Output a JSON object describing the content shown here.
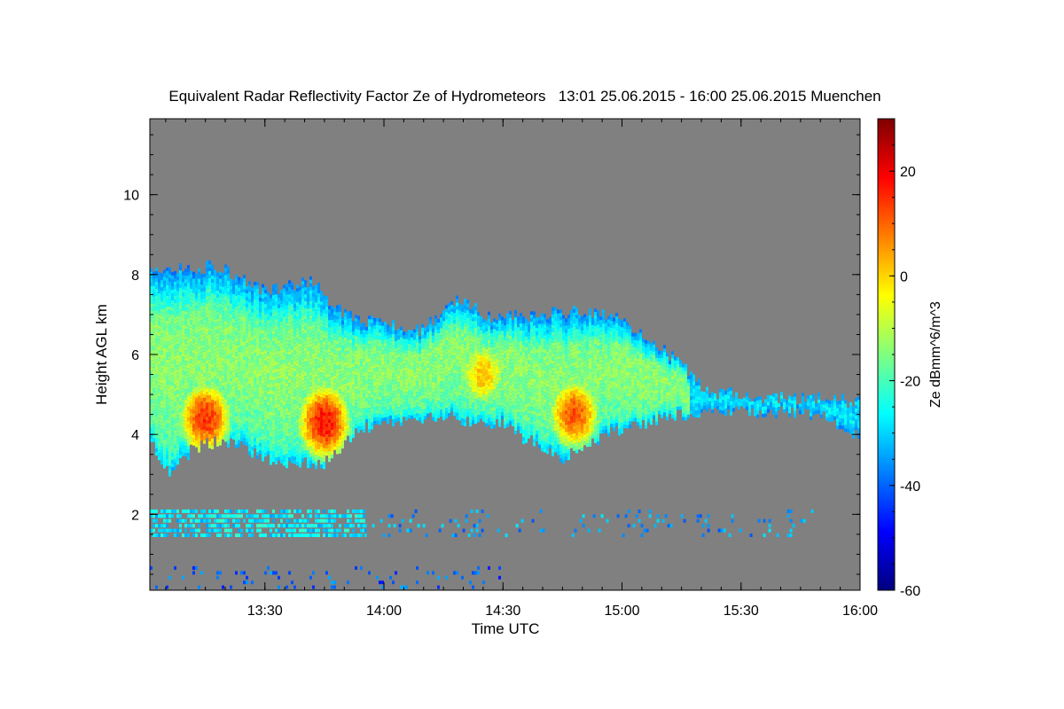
{
  "chart_data": {
    "type": "heatmap",
    "title": "Equivalent Radar Reflectivity Factor Ze of Hydrometeors   13:01 25.06.2015 - 16:00 25.06.2015 Muenchen",
    "xlabel": "Time UTC",
    "ylabel": "Height AGL km",
    "colorbar_label": "Ze dBmm^6/m^3",
    "x_range": [
      "13:01",
      "16:00"
    ],
    "x_ticks": [
      "13:30",
      "14:00",
      "14:30",
      "15:00",
      "15:30",
      "16:00"
    ],
    "y_range": [
      0.1,
      11.9
    ],
    "y_ticks": [
      "2",
      "4",
      "6",
      "8",
      "10"
    ],
    "colorbar_range": [
      -60,
      30
    ],
    "colorbar_ticks": [
      "20",
      "0",
      "-20",
      "-40",
      "-60"
    ],
    "colormap": "jet",
    "no_data_color": "#808080",
    "cloud_layer": {
      "base_km": [
        [
          13.02,
          3.9
        ],
        [
          13.1,
          3.1
        ],
        [
          13.2,
          3.7
        ],
        [
          13.35,
          3.9
        ],
        [
          13.55,
          3.3
        ],
        [
          13.75,
          3.3
        ],
        [
          13.9,
          4.2
        ],
        [
          14.1,
          4.4
        ],
        [
          14.25,
          4.5
        ],
        [
          14.5,
          4.3
        ],
        [
          14.75,
          3.4
        ],
        [
          14.95,
          4.1
        ],
        [
          15.1,
          4.3
        ],
        [
          15.2,
          4.5
        ],
        [
          15.4,
          4.6
        ],
        [
          15.7,
          4.6
        ],
        [
          15.85,
          4.5
        ],
        [
          16.0,
          4.0
        ]
      ],
      "top_km": [
        [
          13.02,
          8.1
        ],
        [
          13.3,
          8.2
        ],
        [
          13.5,
          7.6
        ],
        [
          13.7,
          7.8
        ],
        [
          13.83,
          7.0
        ],
        [
          13.95,
          6.8
        ],
        [
          14.15,
          6.6
        ],
        [
          14.3,
          7.4
        ],
        [
          14.45,
          6.9
        ],
        [
          14.65,
          7.0
        ],
        [
          14.85,
          7.1
        ],
        [
          15.0,
          6.9
        ],
        [
          15.2,
          6.0
        ],
        [
          15.35,
          5.1
        ],
        [
          15.6,
          4.9
        ],
        [
          15.85,
          4.9
        ],
        [
          16.0,
          4.8
        ]
      ],
      "cores_dbz": [
        {
          "time": "13:15",
          "height_km": 4.4,
          "ze": 15
        },
        {
          "time": "13:45",
          "height_km": 4.3,
          "ze": 18
        },
        {
          "time": "14:48",
          "height_km": 4.5,
          "ze": 12
        },
        {
          "time": "14:25",
          "height_km": 5.5,
          "ze": 2
        }
      ]
    },
    "low_echo_layers": [
      {
        "from": "13:01",
        "to": "13:55",
        "height_km": [
          1.4,
          2.1
        ],
        "ze": -28
      },
      {
        "from": "13:55",
        "to": "15:50",
        "height_km": [
          1.4,
          2.1
        ],
        "ze": -35,
        "sparse": true
      },
      {
        "from": "13:01",
        "to": "14:30",
        "height_km": [
          0.1,
          0.6
        ],
        "ze": -40,
        "sparse": true
      }
    ]
  }
}
